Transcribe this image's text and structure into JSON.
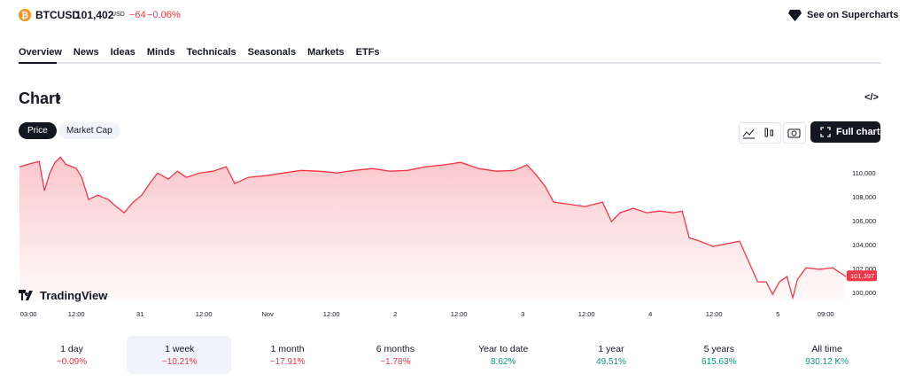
{
  "header": {
    "symbol": "BTCUSD",
    "price": "101,402",
    "currency": "USD",
    "change": "−64",
    "change_percent": "−0.06%",
    "supercharts": "See on Supercharts"
  },
  "tabs": [
    "Overview",
    "News",
    "Ideas",
    "Minds",
    "Technicals",
    "Seasonals",
    "Markets",
    "ETFs"
  ],
  "section_title": "Chart",
  "toggles": [
    "Price",
    "Market Cap"
  ],
  "full_chart": "Full chart",
  "brand": "TradingView",
  "chart_data": {
    "type": "area",
    "color": "#f23645",
    "x": [
      -1.7,
      0.5,
      2,
      3,
      4,
      5,
      6,
      7,
      9,
      10,
      11.3,
      13,
      15,
      16.3,
      18,
      19.7,
      21.3,
      23,
      24.3,
      26.3,
      28,
      29.7,
      32.2,
      34.7,
      37.2,
      38.8,
      41.3,
      44.7,
      48,
      51.3,
      54.7,
      58,
      61.3,
      64.7,
      68,
      71.3,
      74.7,
      78,
      81.3,
      84.7,
      88,
      91.3,
      93.8,
      95.5,
      97.2,
      98.8,
      101.3,
      104.7,
      108,
      109.7,
      111.3,
      113.8,
      116.3,
      118.8,
      121.3,
      123,
      124.3,
      126.3,
      128.8,
      131.3,
      133.8,
      135.5,
      137.2,
      138.8,
      140,
      141.3,
      142.7,
      143.8,
      144.7,
      146.3,
      148.8,
      151.3,
      153.8
    ],
    "values": [
      110520,
      110800,
      110960,
      108520,
      110000,
      110890,
      111330,
      110740,
      110370,
      109630,
      107780,
      108150,
      107780,
      107260,
      106670,
      107560,
      108150,
      109260,
      110000,
      109480,
      110150,
      109630,
      110000,
      110150,
      110520,
      109110,
      109630,
      109780,
      110000,
      110220,
      110150,
      110000,
      110220,
      110370,
      110150,
      110220,
      110520,
      110670,
      110890,
      110370,
      110150,
      110220,
      110670,
      109850,
      108890,
      107560,
      107410,
      107190,
      107560,
      105930,
      106670,
      107040,
      106670,
      106810,
      106670,
      106810,
      104590,
      104300,
      103850,
      104070,
      104300,
      102590,
      100890,
      100890,
      99850,
      100890,
      101330,
      99560,
      101110,
      102070,
      101930,
      102070,
      101330
    ],
    "xlim": [
      -1.7,
      153.8
    ],
    "ylim": [
      99300,
      111500
    ],
    "xticks": [
      {
        "value": 0,
        "label": "03:00"
      },
      {
        "value": 9,
        "label": "12:00"
      },
      {
        "value": 21,
        "label": "31"
      },
      {
        "value": 33,
        "label": "12:00"
      },
      {
        "value": 45,
        "label": "Nov"
      },
      {
        "value": 57,
        "label": "12:00"
      },
      {
        "value": 69,
        "label": "2"
      },
      {
        "value": 81,
        "label": "12:00"
      },
      {
        "value": 93,
        "label": "3"
      },
      {
        "value": 105,
        "label": "12:00"
      },
      {
        "value": 117,
        "label": "4"
      },
      {
        "value": 129,
        "label": "12:00"
      },
      {
        "value": 141,
        "label": "5"
      },
      {
        "value": 150,
        "label": "09:00"
      }
    ],
    "yticks": [
      {
        "value": 100000,
        "label": "100,000"
      },
      {
        "value": 102000,
        "label": "102,000"
      },
      {
        "value": 104000,
        "label": "104,000"
      },
      {
        "value": 106000,
        "label": "106,000"
      },
      {
        "value": 108000,
        "label": "108,000"
      },
      {
        "value": 110000,
        "label": "110,000"
      }
    ],
    "last_value": {
      "value": 101397,
      "label": "101,397"
    }
  },
  "periods": [
    {
      "label": "1 day",
      "change": "−0.09%",
      "direction": "down"
    },
    {
      "label": "1 week",
      "change": "−10.21%",
      "direction": "down",
      "selected": true
    },
    {
      "label": "1 month",
      "change": "−17.91%",
      "direction": "down"
    },
    {
      "label": "6 months",
      "change": "−1.78%",
      "direction": "down"
    },
    {
      "label": "Year to date",
      "change": "8.62%",
      "direction": "up"
    },
    {
      "label": "1 year",
      "change": "49.51%",
      "direction": "up"
    },
    {
      "label": "5 years",
      "change": "615.63%",
      "direction": "up"
    },
    {
      "label": "All time",
      "change": "930.12 K%",
      "direction": "up"
    }
  ]
}
